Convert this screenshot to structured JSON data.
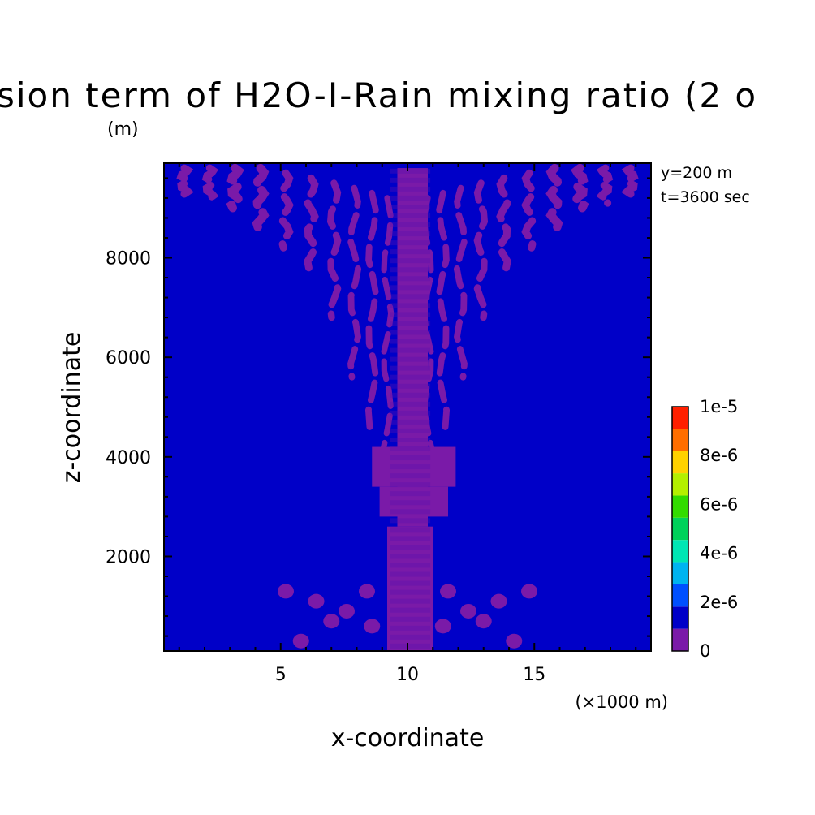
{
  "chart_data": {
    "type": "heatmap",
    "title": "sion term of H2O-I-Rain mixing ratio (2 o",
    "ylabel_units": "(m)",
    "xlabel": "x-coordinate",
    "ylabel": "z-coordinate",
    "x_scale_note": "(×1000 m)",
    "annotations": [
      "y=200 m",
      "t=3600 sec"
    ],
    "xlim": [
      0.4,
      19.6
    ],
    "ylim": [
      100,
      9900
    ],
    "xticks": [
      5,
      10,
      15
    ],
    "xtick_labels": [
      "5",
      "10",
      "15"
    ],
    "yticks": [
      2000,
      4000,
      6000,
      8000
    ],
    "ytick_labels": [
      "2000",
      "4000",
      "6000",
      "8000"
    ],
    "background_level_color": "#0000c8",
    "feature_level_color": "#7a1aa8",
    "colorbar": {
      "min": 0,
      "max": 1e-05,
      "tick_labels": [
        "0",
        "2e-6",
        "4e-6",
        "6e-6",
        "8e-6",
        "1e-5"
      ],
      "bins": [
        {
          "label": "below 0",
          "color": "#7a1aa8"
        },
        {
          "label": "0 to 1e-6",
          "color": "#0000c8"
        },
        {
          "label": "1e-6 to 2e-6",
          "color": "#0050ff"
        },
        {
          "label": "2e-6 to 3e-6",
          "color": "#00b4f0"
        },
        {
          "label": "3e-6 to 4e-6",
          "color": "#00e6b4"
        },
        {
          "label": "4e-6 to 5e-6",
          "color": "#00d25a"
        },
        {
          "label": "5e-6 to 6e-6",
          "color": "#32dc00"
        },
        {
          "label": "6e-6 to 7e-6",
          "color": "#b4f000"
        },
        {
          "label": "7e-6 to 8e-6",
          "color": "#ffd200"
        },
        {
          "label": "8e-6 to 9e-6",
          "color": "#ff6e00"
        },
        {
          "label": "9e-6 to 1e-5",
          "color": "#ff2000"
        }
      ]
    },
    "series": [
      {
        "level": "below 0",
        "note": "negative diffusion tendency; centered plume around x=10 with banded filaments",
        "regions": [
          {
            "shape": "rect",
            "x": [
              9.2,
              11.0
            ],
            "z": [
              100,
              2600
            ]
          },
          {
            "shape": "rect",
            "x": [
              9.6,
              10.8
            ],
            "z": [
              2600,
              9800
            ]
          },
          {
            "shape": "rect",
            "x": [
              8.9,
              11.6
            ],
            "z": [
              2800,
              3400
            ]
          },
          {
            "shape": "rect",
            "x": [
              8.6,
              11.9
            ],
            "z": [
              3400,
              4200
            ]
          }
        ]
      }
    ]
  }
}
